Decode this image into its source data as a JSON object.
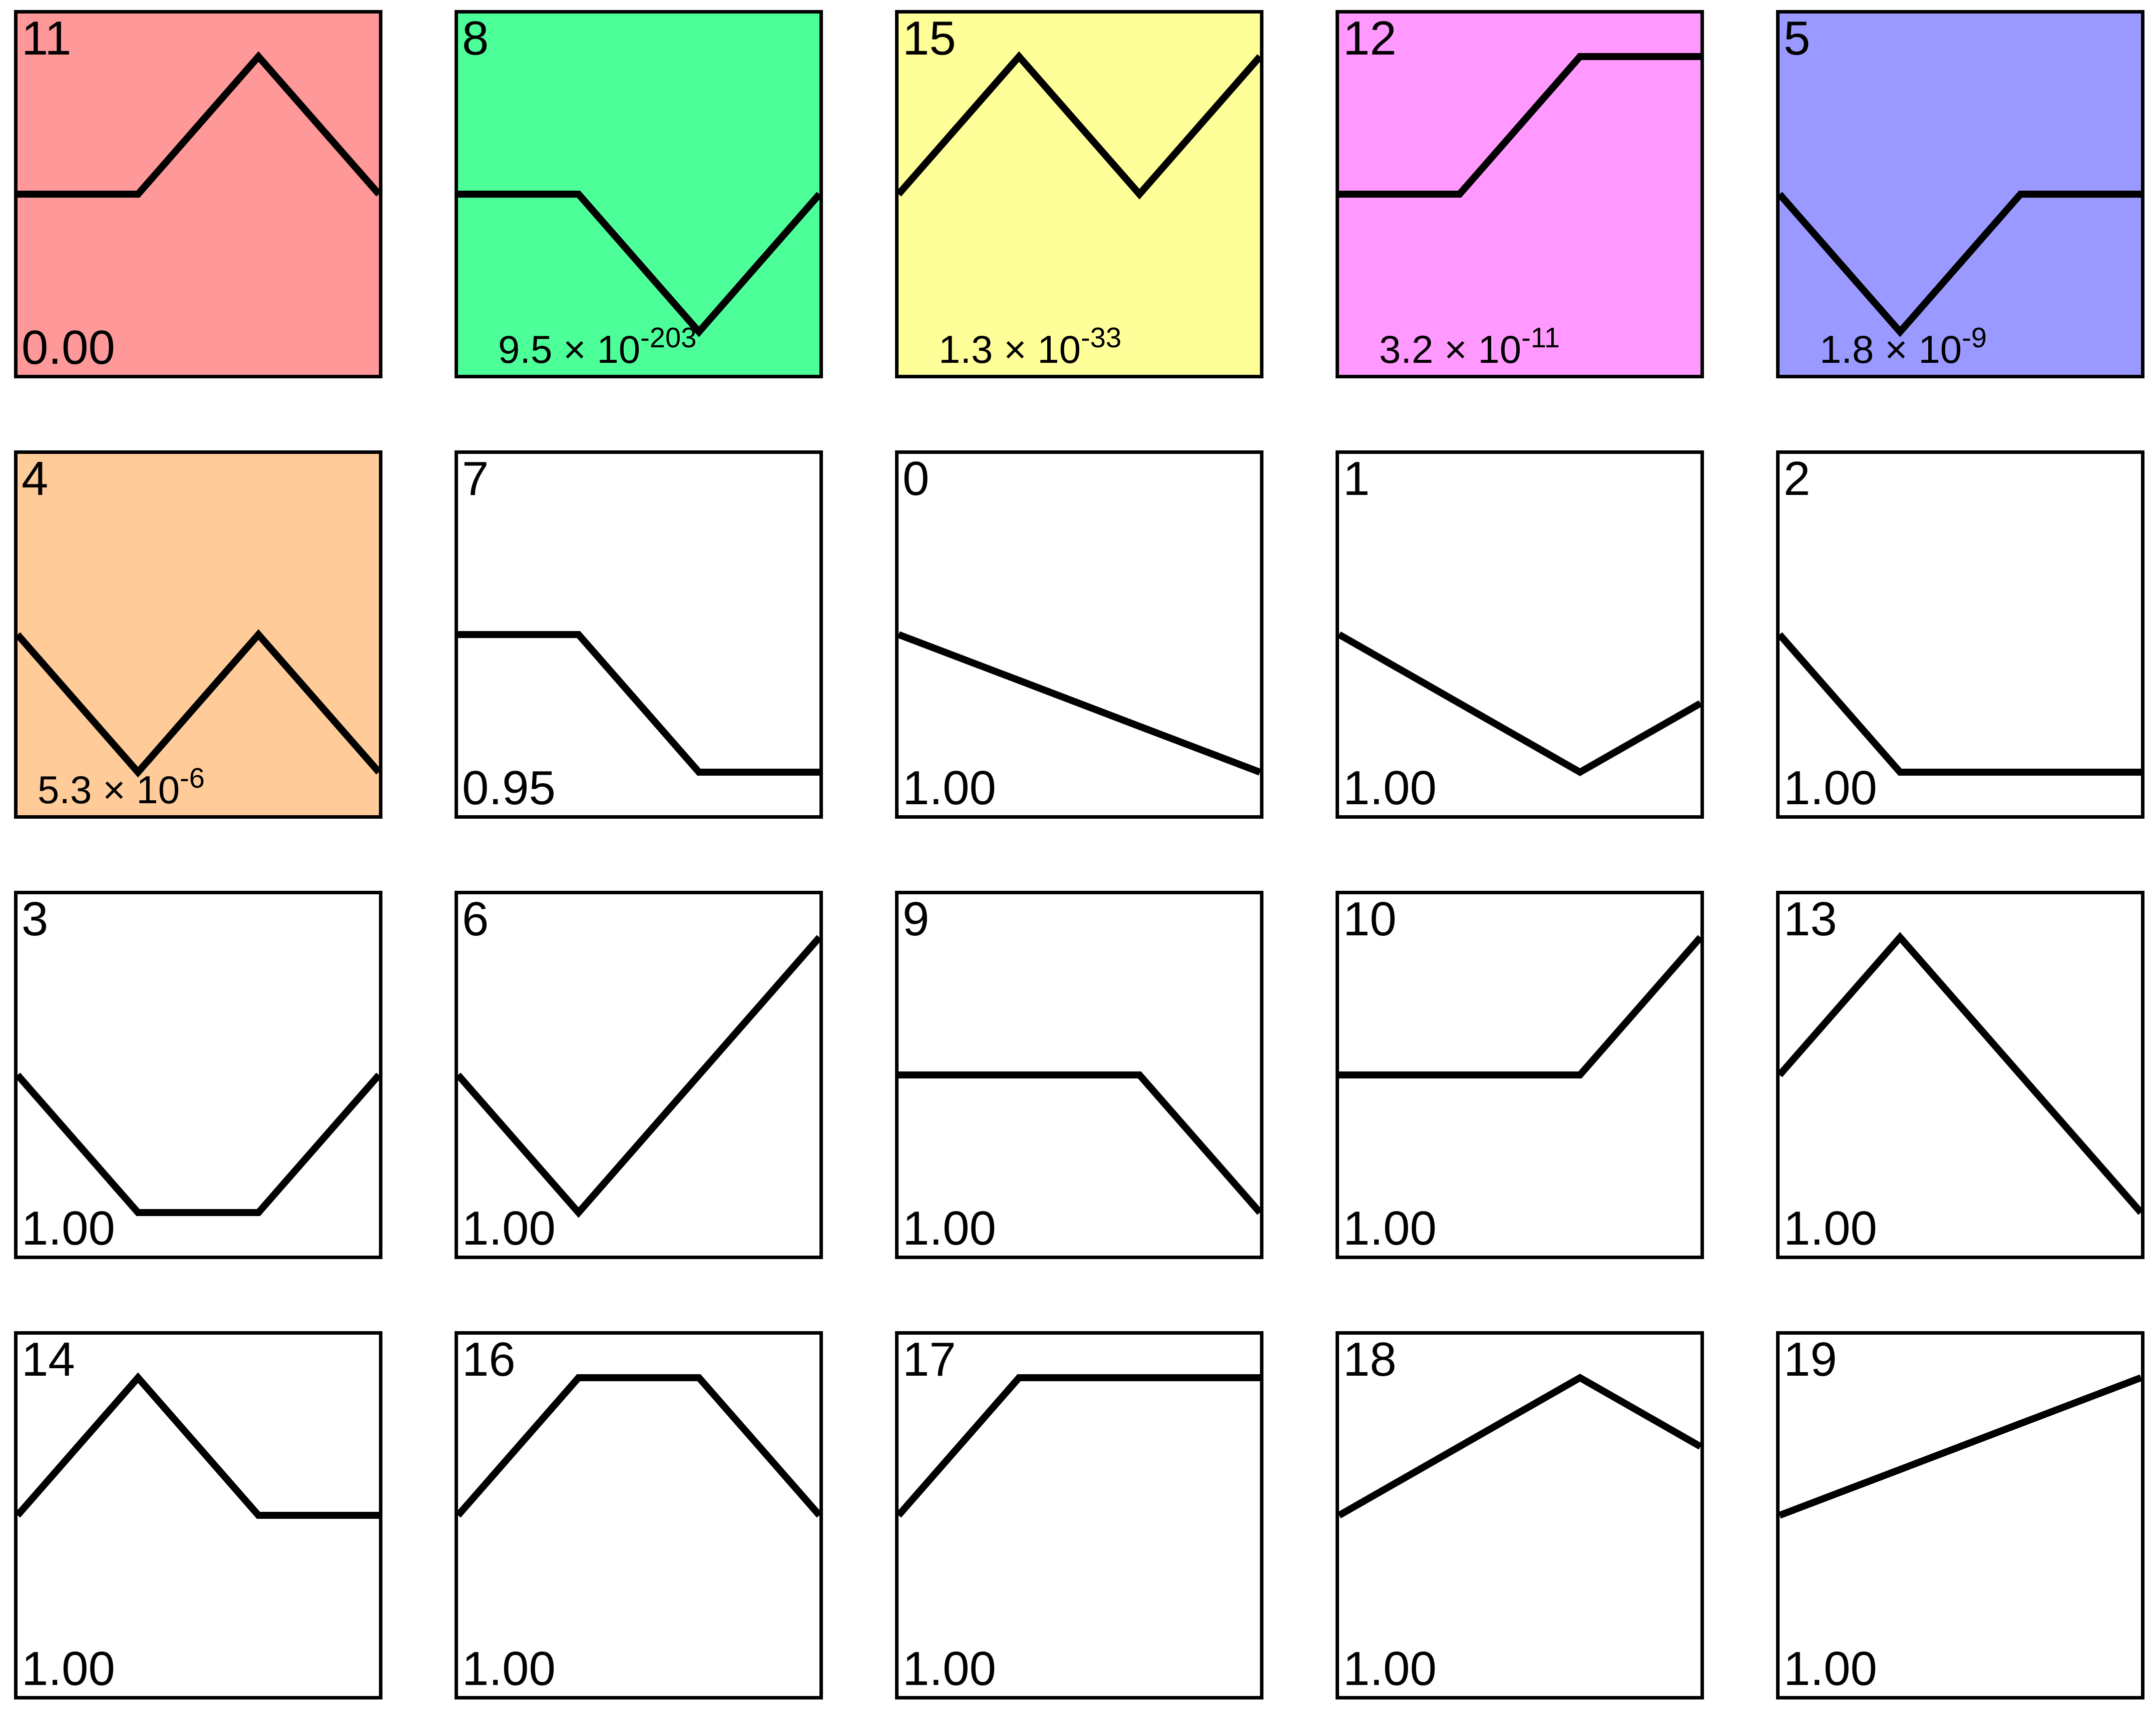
{
  "chart_data": [
    {
      "type": "line",
      "id": "11",
      "value": "0.00",
      "mantissa": "",
      "exponent": "",
      "color": "#ff9999",
      "x": [
        0,
        1,
        2,
        3
      ],
      "y": [
        0,
        0,
        1,
        0
      ]
    },
    {
      "type": "line",
      "id": "8",
      "value": "",
      "mantissa": "9.5 × 10",
      "exponent": "-203",
      "color": "#4dff99",
      "x": [
        0,
        1,
        2,
        3
      ],
      "y": [
        0,
        0,
        -1,
        0
      ]
    },
    {
      "type": "line",
      "id": "15",
      "value": "",
      "mantissa": "1.3 × 10",
      "exponent": "-33",
      "color": "#ffff99",
      "x": [
        0,
        1,
        2,
        3
      ],
      "y": [
        0,
        1,
        0,
        1
      ]
    },
    {
      "type": "line",
      "id": "12",
      "value": "",
      "mantissa": "3.2 × 10",
      "exponent": "-11",
      "color": "#ff99ff",
      "x": [
        0,
        1,
        2,
        3
      ],
      "y": [
        0,
        0,
        1,
        1
      ]
    },
    {
      "type": "line",
      "id": "5",
      "value": "",
      "mantissa": "1.8 × 10",
      "exponent": "-9",
      "color": "#9999ff",
      "x": [
        0,
        1,
        2,
        3
      ],
      "y": [
        0,
        -1,
        0,
        0
      ]
    },
    {
      "type": "line",
      "id": "4",
      "value": "",
      "mantissa": "5.3 × 10",
      "exponent": "-6",
      "color": "#ffcc99",
      "x": [
        0,
        1,
        2,
        3
      ],
      "y": [
        0,
        -1,
        0,
        -1
      ]
    },
    {
      "type": "line",
      "id": "7",
      "value": "0.95",
      "mantissa": "",
      "exponent": "",
      "color": "#ffffff",
      "x": [
        0,
        1,
        2,
        3
      ],
      "y": [
        0,
        0,
        -1,
        -1
      ]
    },
    {
      "type": "line",
      "id": "0",
      "value": "1.00",
      "mantissa": "",
      "exponent": "",
      "color": "#ffffff",
      "x": [
        0,
        1,
        2,
        3
      ],
      "y": [
        0,
        -0.333,
        -0.667,
        -1
      ]
    },
    {
      "type": "line",
      "id": "1",
      "value": "1.00",
      "mantissa": "",
      "exponent": "",
      "color": "#ffffff",
      "x": [
        0,
        1,
        2,
        3
      ],
      "y": [
        0,
        -0.5,
        -1,
        -0.5
      ]
    },
    {
      "type": "line",
      "id": "2",
      "value": "1.00",
      "mantissa": "",
      "exponent": "",
      "color": "#ffffff",
      "x": [
        0,
        1,
        2,
        3
      ],
      "y": [
        0,
        -1,
        -1,
        -1
      ]
    },
    {
      "type": "line",
      "id": "3",
      "value": "1.00",
      "mantissa": "",
      "exponent": "",
      "color": "#ffffff",
      "x": [
        0,
        1,
        2,
        3
      ],
      "y": [
        0,
        -1,
        -1,
        0
      ]
    },
    {
      "type": "line",
      "id": "6",
      "value": "1.00",
      "mantissa": "",
      "exponent": "",
      "color": "#ffffff",
      "x": [
        0,
        1,
        2,
        3
      ],
      "y": [
        0,
        -1,
        0,
        1
      ]
    },
    {
      "type": "line",
      "id": "9",
      "value": "1.00",
      "mantissa": "",
      "exponent": "",
      "color": "#ffffff",
      "x": [
        0,
        1,
        2,
        3
      ],
      "y": [
        0,
        0,
        0,
        -1
      ]
    },
    {
      "type": "line",
      "id": "10",
      "value": "1.00",
      "mantissa": "",
      "exponent": "",
      "color": "#ffffff",
      "x": [
        0,
        1,
        2,
        3
      ],
      "y": [
        0,
        0,
        0,
        1
      ]
    },
    {
      "type": "line",
      "id": "13",
      "value": "1.00",
      "mantissa": "",
      "exponent": "",
      "color": "#ffffff",
      "x": [
        0,
        1,
        2,
        3
      ],
      "y": [
        0,
        1,
        0,
        -1
      ]
    },
    {
      "type": "line",
      "id": "14",
      "value": "1.00",
      "mantissa": "",
      "exponent": "",
      "color": "#ffffff",
      "x": [
        0,
        1,
        2,
        3
      ],
      "y": [
        0,
        1,
        0,
        0
      ]
    },
    {
      "type": "line",
      "id": "16",
      "value": "1.00",
      "mantissa": "",
      "exponent": "",
      "color": "#ffffff",
      "x": [
        0,
        1,
        2,
        3
      ],
      "y": [
        0,
        1,
        1,
        0
      ]
    },
    {
      "type": "line",
      "id": "17",
      "value": "1.00",
      "mantissa": "",
      "exponent": "",
      "color": "#ffffff",
      "x": [
        0,
        1,
        2,
        3
      ],
      "y": [
        0,
        1,
        1,
        1
      ]
    },
    {
      "type": "line",
      "id": "18",
      "value": "1.00",
      "mantissa": "",
      "exponent": "",
      "color": "#ffffff",
      "x": [
        0,
        1,
        2,
        3
      ],
      "y": [
        0,
        0.5,
        1,
        0.5
      ]
    },
    {
      "type": "line",
      "id": "19",
      "value": "1.00",
      "mantissa": "",
      "exponent": "",
      "color": "#ffffff",
      "x": [
        0,
        1,
        2,
        3
      ],
      "y": [
        0,
        0.333,
        0.667,
        1
      ]
    }
  ]
}
